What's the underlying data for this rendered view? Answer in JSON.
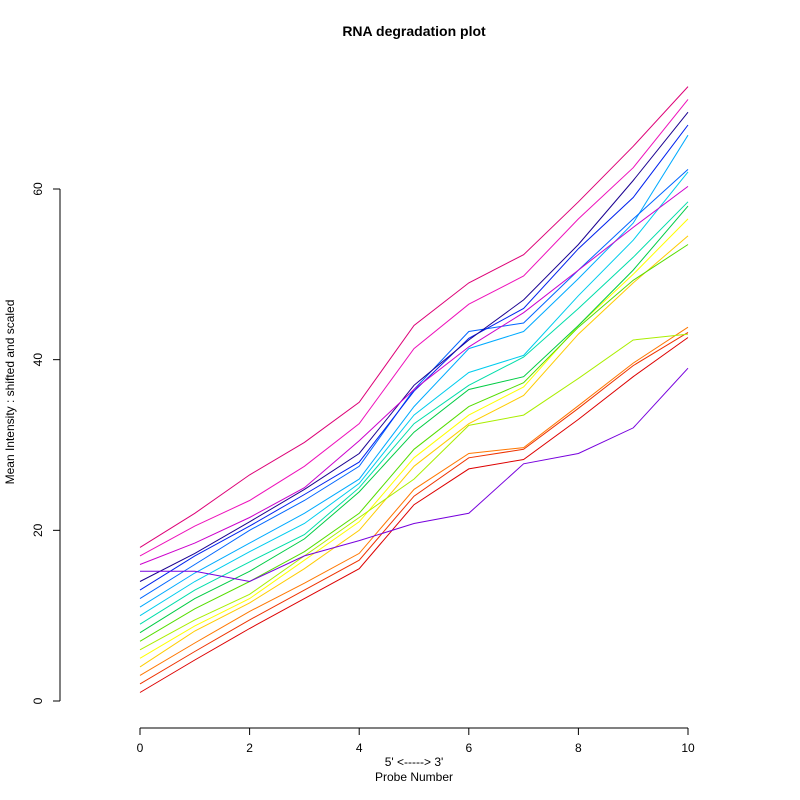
{
  "chart_data": {
    "type": "line",
    "title": "RNA degradation plot",
    "xlabel_line1": "5' <-----> 3'",
    "xlabel_line2": "Probe Number",
    "ylabel": "Mean Intensity : shifted and scaled",
    "xlim": [
      0,
      10
    ],
    "ylim": [
      0,
      60
    ],
    "x_ticks": [
      "0",
      "2",
      "4",
      "6",
      "8",
      "10"
    ],
    "y_ticks": [
      "0",
      "20",
      "40",
      "60"
    ],
    "grid": false,
    "legend": "none",
    "x": [
      0,
      1,
      2,
      3,
      4,
      5,
      6,
      7,
      8,
      9,
      10
    ],
    "series": [
      {
        "color": "#dd0000",
        "values": [
          1.0,
          4.8,
          8.5,
          12.0,
          15.5,
          23.0,
          27.2,
          28.3,
          33.0,
          38.0,
          42.6
        ]
      },
      {
        "color": "#ee3300",
        "values": [
          2.0,
          5.8,
          9.5,
          13.0,
          16.5,
          24.0,
          28.5,
          29.5,
          34.3,
          39.3,
          43.2
        ]
      },
      {
        "color": "#ff7700",
        "values": [
          3.0,
          6.8,
          10.5,
          13.8,
          17.3,
          24.8,
          29.0,
          29.7,
          34.6,
          39.6,
          43.8
        ]
      },
      {
        "color": "#ffcc00",
        "values": [
          4.0,
          8.2,
          11.5,
          15.5,
          20.0,
          27.5,
          32.5,
          35.8,
          43.0,
          49.0,
          54.5
        ]
      },
      {
        "color": "#ffff00",
        "values": [
          5.0,
          8.8,
          12.0,
          16.5,
          21.0,
          28.5,
          33.5,
          36.8,
          44.0,
          50.0,
          56.5
        ]
      },
      {
        "color": "#aaee00",
        "values": [
          6.0,
          9.5,
          12.5,
          17.0,
          21.5,
          26.0,
          32.3,
          33.5,
          37.8,
          42.3,
          43.0
        ]
      },
      {
        "color": "#55dd00",
        "values": [
          7.0,
          10.8,
          14.0,
          17.5,
          22.0,
          29.5,
          34.5,
          37.3,
          43.8,
          49.3,
          53.5
        ]
      },
      {
        "color": "#00cc44",
        "values": [
          8.0,
          12.0,
          15.2,
          19.0,
          24.5,
          31.5,
          36.5,
          38.0,
          44.0,
          50.5,
          58.0
        ]
      },
      {
        "color": "#00ddaa",
        "values": [
          9.0,
          13.0,
          16.3,
          19.5,
          25.0,
          32.5,
          37.0,
          40.3,
          46.0,
          52.0,
          58.5
        ]
      },
      {
        "color": "#00ccee",
        "values": [
          10.0,
          14.0,
          17.5,
          20.8,
          25.5,
          33.5,
          38.5,
          40.5,
          47.5,
          54.0,
          62.0
        ]
      },
      {
        "color": "#00aaff",
        "values": [
          11.0,
          15.0,
          18.5,
          22.0,
          26.0,
          34.5,
          41.3,
          43.3,
          49.5,
          56.0,
          66.3
        ]
      },
      {
        "color": "#0066ff",
        "values": [
          12.0,
          16.0,
          20.0,
          23.5,
          27.5,
          36.5,
          43.3,
          44.3,
          50.5,
          56.5,
          62.3
        ]
      },
      {
        "color": "#0022ee",
        "values": [
          13.0,
          17.0,
          20.5,
          24.2,
          28.0,
          36.3,
          42.5,
          46.0,
          53.0,
          59.0,
          67.5
        ]
      },
      {
        "color": "#1a0090",
        "values": [
          14.0,
          17.3,
          21.0,
          24.8,
          29.0,
          37.0,
          42.3,
          47.0,
          53.5,
          61.0,
          69.0
        ]
      },
      {
        "color": "#7700dd",
        "values": [
          15.2,
          15.2,
          14.0,
          17.0,
          18.8,
          20.8,
          22.0,
          27.8,
          29.0,
          32.0,
          39.0
        ]
      },
      {
        "color": "#cc00cc",
        "values": [
          16.0,
          18.5,
          21.5,
          25.0,
          30.5,
          36.5,
          41.5,
          45.5,
          50.5,
          55.5,
          60.3
        ]
      },
      {
        "color": "#ee11bb",
        "values": [
          17.0,
          20.5,
          23.5,
          27.5,
          32.5,
          41.3,
          46.5,
          49.8,
          56.5,
          62.5,
          70.5
        ]
      },
      {
        "color": "#dd0077",
        "values": [
          18.0,
          22.0,
          26.5,
          30.3,
          35.0,
          44.0,
          49.0,
          52.3,
          58.5,
          65.0,
          72.0
        ]
      }
    ]
  }
}
